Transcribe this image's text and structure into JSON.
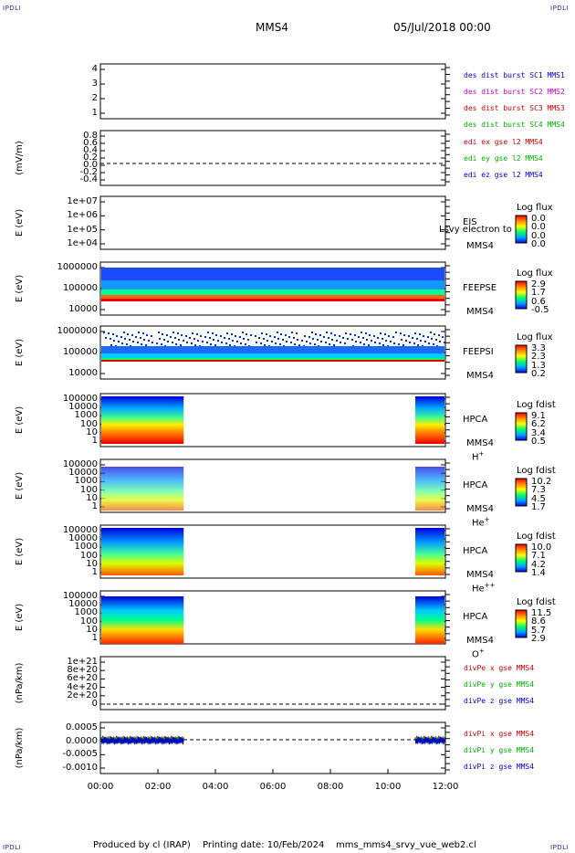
{
  "corner_label": "IPDLI",
  "header": {
    "mission": "MMS4",
    "datetime": "05/Jul/2018 00:00"
  },
  "x_ticks": [
    "00:00",
    "02:00",
    "04:00",
    "06:00",
    "08:00",
    "10:00",
    "12:00"
  ],
  "colors": {
    "frame": "#000000",
    "blue": "#0000cc",
    "magenta": "#cc00cc",
    "red": "#cc0000",
    "green": "#00b000"
  },
  "panels": [
    {
      "key": "p1",
      "ylabel": "",
      "ticks": [
        "4",
        "3",
        "2",
        "1"
      ],
      "legend": [
        {
          "text": "des dist burst SC1 MMS1",
          "color": "#0000cc"
        },
        {
          "text": "des dist burst SC2 MMS2",
          "color": "#cc00cc"
        },
        {
          "text": "des dist burst SC3 MMS3",
          "color": "#cc0000"
        },
        {
          "text": "des dist burst SC4 MMS4",
          "color": "#00b000"
        }
      ]
    },
    {
      "key": "p2",
      "ylabel": "(mV/m)",
      "ticks": [
        "0.8",
        "0.6",
        "0.4",
        "0.2",
        "0.0",
        "-0.2",
        "-0.4"
      ],
      "legend": [
        {
          "text": "edi ex gse l2 MMS4",
          "color": "#cc0000"
        },
        {
          "text": "edi ey gse l2 MMS4",
          "color": "#00b000"
        },
        {
          "text": "edi ez gse l2 MMS4",
          "color": "#0000cc"
        }
      ]
    },
    {
      "key": "p3",
      "ylabel": "E (eV)",
      "ticks": [
        "1e+07",
        "1e+06",
        "1e+05",
        "1e+04"
      ],
      "side": [
        "EIS",
        "MMS4"
      ],
      "overlay": "Lsvy electron to",
      "cbar": {
        "title": "Log flux",
        "values": [
          "0.0",
          "0.0",
          "0.0",
          "0.0"
        ]
      }
    },
    {
      "key": "p4",
      "ylabel": "E (eV)",
      "ticks": [
        "1000000",
        "100000",
        "10000"
      ],
      "side": [
        "FEEPSE",
        "MMS4"
      ],
      "cbar": {
        "title": "Log flux",
        "values": [
          "2.9",
          "1.7",
          "0.6",
          "-0.5"
        ]
      }
    },
    {
      "key": "p5",
      "ylabel": "E (eV)",
      "ticks": [
        "1000000",
        "100000",
        "10000"
      ],
      "side": [
        "FEEPSI",
        "MMS4"
      ],
      "cbar": {
        "title": "Log flux",
        "values": [
          "3.3",
          "2.3",
          "1.3",
          "0.2"
        ]
      }
    },
    {
      "key": "p6",
      "ylabel": "E (eV)",
      "ticks": [
        "100000",
        "10000",
        "1000",
        "100",
        "10",
        "1"
      ],
      "side": [
        "HPCA",
        "MMS4"
      ],
      "species": "H",
      "sup": "+",
      "cbar": {
        "title": "Log fdist",
        "values": [
          "9.1",
          "6.2",
          "3.4",
          "0.5"
        ]
      }
    },
    {
      "key": "p7",
      "ylabel": "E (eV)",
      "ticks": [
        "100000",
        "10000",
        "1000",
        "100",
        "10",
        "1"
      ],
      "side": [
        "HPCA",
        "MMS4"
      ],
      "species": "He",
      "sup": "+",
      "cbar": {
        "title": "Log fdist",
        "values": [
          "10.2",
          "7.3",
          "4.5",
          "1.7"
        ]
      }
    },
    {
      "key": "p8",
      "ylabel": "E (eV)",
      "ticks": [
        "100000",
        "10000",
        "1000",
        "100",
        "10",
        "1"
      ],
      "side": [
        "HPCA",
        "MMS4"
      ],
      "species": "He",
      "sup": "++",
      "cbar": {
        "title": "Log fdist",
        "values": [
          "10.0",
          "7.1",
          "4.2",
          "1.4"
        ]
      }
    },
    {
      "key": "p9",
      "ylabel": "E (eV)",
      "ticks": [
        "100000",
        "10000",
        "1000",
        "100",
        "10",
        "1"
      ],
      "side": [
        "HPCA",
        "MMS4"
      ],
      "species": "O",
      "sup": "+",
      "cbar": {
        "title": "Log fdist",
        "values": [
          "11.5",
          "8.6",
          "5.7",
          "2.9"
        ]
      }
    },
    {
      "key": "p10",
      "ylabel": "(nPa/km)",
      "ticks": [
        "1e+21",
        "8e+20",
        "6e+20",
        "4e+20",
        "2e+20",
        "0"
      ],
      "legend": [
        {
          "text": "divPe x gse MMS4",
          "color": "#cc0000"
        },
        {
          "text": "divPe y gse MMS4",
          "color": "#00b000"
        },
        {
          "text": "divPe z gse MMS4",
          "color": "#0000cc"
        }
      ]
    },
    {
      "key": "p11",
      "ylabel": "(nPa/km)",
      "ticks": [
        "0.0005",
        "0.0000",
        "-0.0005",
        "-0.0010"
      ],
      "legend": [
        {
          "text": "divPi x gse MMS4",
          "color": "#cc0000"
        },
        {
          "text": "divPi y gse MMS4",
          "color": "#00b000"
        },
        {
          "text": "divPi z gse MMS4",
          "color": "#0000cc"
        }
      ]
    }
  ],
  "footer": {
    "produced": "Produced by cl (IRAP)",
    "printing": "Printing date: 10/Feb/2024",
    "file": "mms_mms4_srvy_vue_web2.cl"
  },
  "chart_data": {
    "type": "heatmap",
    "title": "MMS4",
    "x": [
      "00:00",
      "02:00",
      "04:00",
      "06:00",
      "08:00",
      "10:00",
      "12:00"
    ],
    "notes": "Stacked time-series panels; spectrogram data present 00:00-02:50 and 11:00-12:00 for HPCA; FEEPS continuous."
  }
}
